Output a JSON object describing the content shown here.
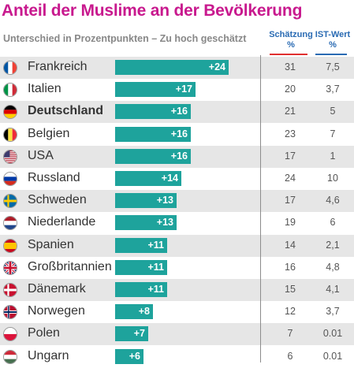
{
  "title": "Anteil der Muslime an der Bevölkerung",
  "subtitle": "Unterschied in Prozentpunkten – Zu hoch geschätzt",
  "columns": {
    "estimate": "Schätzung",
    "estimate_unit": "%",
    "actual": "IST-Wert",
    "actual_unit": "%"
  },
  "colors": {
    "bar": "#1ea39c",
    "title": "#c8198e",
    "header": "#2a6bb3",
    "estimate_rule": "#e03030",
    "row_alt": "#e6e6e6"
  },
  "chart_data": {
    "type": "bar",
    "orientation": "horizontal",
    "title": "Anteil der Muslime an der Bevölkerung",
    "subtitle": "Unterschied in Prozentpunkten – Zu hoch geschätzt",
    "categories": [
      "Frankreich",
      "Italien",
      "Deutschland",
      "Belgien",
      "USA",
      "Russland",
      "Schweden",
      "Niederlande",
      "Spanien",
      "Großbritannien",
      "Dänemark",
      "Norwegen",
      "Polen",
      "Ungarn"
    ],
    "values": [
      24,
      17,
      16,
      16,
      16,
      14,
      13,
      13,
      11,
      11,
      11,
      8,
      7,
      6
    ],
    "value_labels": [
      "+24",
      "+17",
      "+16",
      "+16",
      "+16",
      "+14",
      "+13",
      "+13",
      "+11",
      "+11",
      "+11",
      "+8",
      "+7",
      "+6"
    ],
    "highlight": "Deutschland",
    "xlim": [
      0,
      24
    ],
    "estimate": [
      "31",
      "20",
      "21",
      "23",
      "17",
      "24",
      "17",
      "19",
      "14",
      "16",
      "15",
      "12",
      "7",
      "6"
    ],
    "actual": [
      "7,5",
      "3,7",
      "5",
      "7",
      "1",
      "10",
      "4,6",
      "6",
      "2,1",
      "4,8",
      "4,1",
      "3,7",
      "0.01",
      "0.01"
    ],
    "flags": [
      "flag-france-icon",
      "flag-italy-icon",
      "flag-germany-icon",
      "flag-belgium-icon",
      "flag-usa-icon",
      "flag-russia-icon",
      "flag-sweden-icon",
      "flag-netherlands-icon",
      "flag-spain-icon",
      "flag-uk-icon",
      "flag-denmark-icon",
      "flag-norway-icon",
      "flag-poland-icon",
      "flag-hungary-icon"
    ]
  }
}
